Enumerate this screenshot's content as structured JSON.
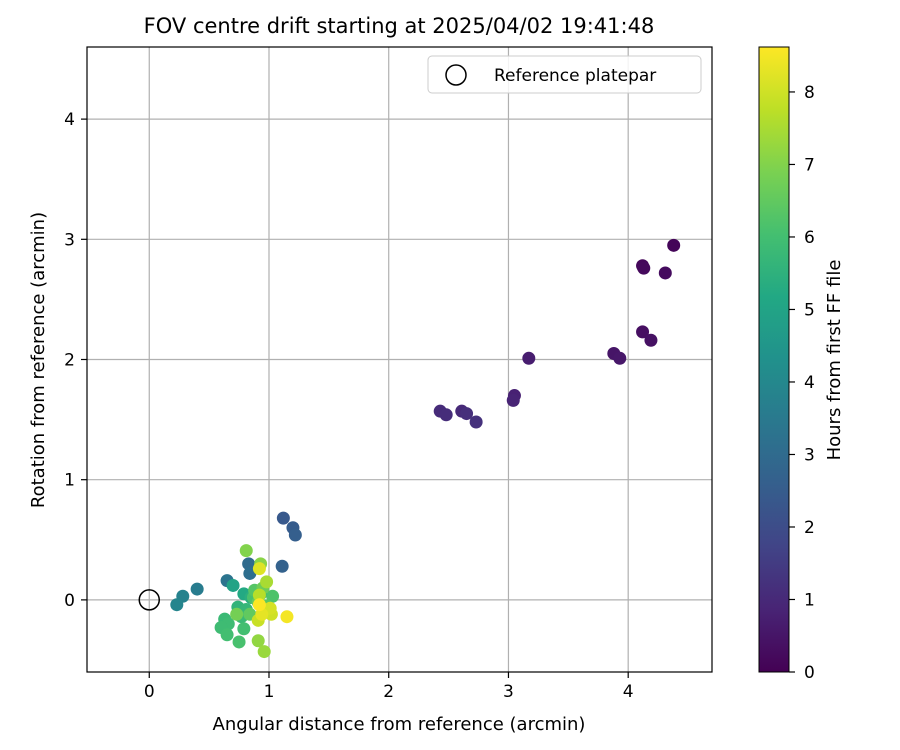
{
  "chart_data": {
    "type": "scatter",
    "title": "FOV centre drift starting at 2025/04/02 19:41:48",
    "xlabel": "Angular distance from reference (arcmin)",
    "ylabel": "Rotation from reference (arcmin)",
    "xlim": [
      -0.52,
      4.7
    ],
    "ylim": [
      -0.6,
      4.6
    ],
    "xticks": [
      0,
      1,
      2,
      3,
      4
    ],
    "yticks": [
      0,
      1,
      2,
      3,
      4
    ],
    "grid": true,
    "legend": {
      "position": "top-right",
      "entries": [
        "Reference platepar"
      ]
    },
    "reference_point": {
      "x": 0,
      "y": 0,
      "label": "Reference platepar"
    },
    "colorbar": {
      "label": "Hours from first FF file",
      "min": 0,
      "max": 8.62,
      "ticks": [
        0,
        1,
        2,
        3,
        4,
        5,
        6,
        7,
        8
      ],
      "colormap": "viridis"
    },
    "points": [
      {
        "x": 4.38,
        "y": 2.95,
        "c": 0.1
      },
      {
        "x": 4.12,
        "y": 2.78,
        "c": 0.15
      },
      {
        "x": 4.13,
        "y": 2.76,
        "c": 0.2
      },
      {
        "x": 4.31,
        "y": 2.72,
        "c": 0.25
      },
      {
        "x": 4.12,
        "y": 2.23,
        "c": 0.35
      },
      {
        "x": 4.19,
        "y": 2.16,
        "c": 0.4
      },
      {
        "x": 3.88,
        "y": 2.05,
        "c": 0.5
      },
      {
        "x": 3.93,
        "y": 2.01,
        "c": 0.55
      },
      {
        "x": 3.17,
        "y": 2.01,
        "c": 0.7
      },
      {
        "x": 3.05,
        "y": 1.7,
        "c": 0.8
      },
      {
        "x": 3.04,
        "y": 1.66,
        "c": 0.85
      },
      {
        "x": 2.61,
        "y": 1.57,
        "c": 1.0
      },
      {
        "x": 2.43,
        "y": 1.57,
        "c": 1.05
      },
      {
        "x": 2.48,
        "y": 1.54,
        "c": 1.1
      },
      {
        "x": 2.65,
        "y": 1.55,
        "c": 1.15
      },
      {
        "x": 2.73,
        "y": 1.48,
        "c": 1.2
      },
      {
        "x": 1.12,
        "y": 0.68,
        "c": 2.4
      },
      {
        "x": 1.2,
        "y": 0.6,
        "c": 2.5
      },
      {
        "x": 1.22,
        "y": 0.54,
        "c": 2.6
      },
      {
        "x": 1.11,
        "y": 0.28,
        "c": 2.7
      },
      {
        "x": 0.83,
        "y": 0.3,
        "c": 3.0
      },
      {
        "x": 0.84,
        "y": 0.22,
        "c": 3.1
      },
      {
        "x": 0.65,
        "y": 0.16,
        "c": 3.3
      },
      {
        "x": 0.4,
        "y": 0.09,
        "c": 3.6
      },
      {
        "x": 0.28,
        "y": 0.03,
        "c": 3.8
      },
      {
        "x": 0.23,
        "y": -0.04,
        "c": 3.9
      },
      {
        "x": 0.7,
        "y": 0.12,
        "c": 5.0
      },
      {
        "x": 0.79,
        "y": 0.05,
        "c": 5.2
      },
      {
        "x": 0.85,
        "y": 0.02,
        "c": 5.4
      },
      {
        "x": 0.93,
        "y": 0.05,
        "c": 5.5
      },
      {
        "x": 0.74,
        "y": -0.06,
        "c": 5.6
      },
      {
        "x": 0.81,
        "y": -0.08,
        "c": 5.7
      },
      {
        "x": 0.77,
        "y": -0.14,
        "c": 5.8
      },
      {
        "x": 0.63,
        "y": -0.16,
        "c": 5.8
      },
      {
        "x": 0.66,
        "y": -0.2,
        "c": 5.9
      },
      {
        "x": 0.6,
        "y": -0.23,
        "c": 5.9
      },
      {
        "x": 0.79,
        "y": -0.24,
        "c": 6.0
      },
      {
        "x": 0.65,
        "y": -0.29,
        "c": 6.0
      },
      {
        "x": 0.75,
        "y": -0.35,
        "c": 6.1
      },
      {
        "x": 0.87,
        "y": 0.02,
        "c": 6.1
      },
      {
        "x": 1.03,
        "y": 0.03,
        "c": 6.2
      },
      {
        "x": 0.88,
        "y": 0.08,
        "c": 6.3
      },
      {
        "x": 0.98,
        "y": -0.05,
        "c": 6.4
      },
      {
        "x": 0.84,
        "y": -0.12,
        "c": 6.5
      },
      {
        "x": 0.91,
        "y": -0.02,
        "c": 6.6
      },
      {
        "x": 0.95,
        "y": 0.1,
        "c": 6.7
      },
      {
        "x": 0.73,
        "y": -0.12,
        "c": 6.8
      },
      {
        "x": 0.81,
        "y": 0.41,
        "c": 7.0
      },
      {
        "x": 0.93,
        "y": 0.3,
        "c": 7.1
      },
      {
        "x": 0.91,
        "y": -0.34,
        "c": 7.2
      },
      {
        "x": 0.96,
        "y": -0.43,
        "c": 7.3
      },
      {
        "x": 0.98,
        "y": 0.15,
        "c": 7.5
      },
      {
        "x": 0.92,
        "y": 0.04,
        "c": 7.7
      },
      {
        "x": 0.96,
        "y": -0.08,
        "c": 7.8
      },
      {
        "x": 0.91,
        "y": -0.17,
        "c": 7.9
      },
      {
        "x": 1.02,
        "y": -0.12,
        "c": 8.0
      },
      {
        "x": 1.01,
        "y": -0.07,
        "c": 8.1
      },
      {
        "x": 0.92,
        "y": 0.26,
        "c": 8.2
      },
      {
        "x": 0.94,
        "y": -0.12,
        "c": 8.3
      },
      {
        "x": 1.15,
        "y": -0.14,
        "c": 8.5
      },
      {
        "x": 0.92,
        "y": -0.04,
        "c": 8.6
      }
    ]
  }
}
